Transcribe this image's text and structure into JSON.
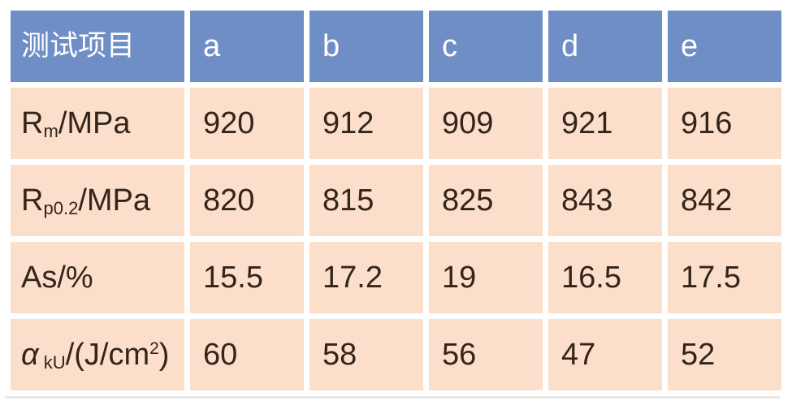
{
  "colors": {
    "header_bg": "#6f8ec6",
    "row_bg": "#fbdfca",
    "header_text": "#ffffff",
    "row_text": "#33251c",
    "page_bg": "#ffffff"
  },
  "chart_data": {
    "type": "table",
    "title": "",
    "columns": [
      "测试项目",
      "a",
      "b",
      "c",
      "d",
      "e"
    ],
    "rows": [
      {
        "label": "Rm/MPa",
        "label_segments": [
          {
            "t": "R"
          },
          {
            "t": "m",
            "s": "sub"
          },
          {
            "t": "/MPa"
          }
        ],
        "values": [
          920,
          912,
          909,
          921,
          916
        ]
      },
      {
        "label": "Rp0.2/MPa",
        "label_segments": [
          {
            "t": "R"
          },
          {
            "t": "p0.2",
            "s": "sub"
          },
          {
            "t": "/MPa"
          }
        ],
        "values": [
          820,
          815,
          825,
          843,
          842
        ]
      },
      {
        "label": "As/%",
        "label_segments": [
          {
            "t": "As/%"
          }
        ],
        "values": [
          15.5,
          17.2,
          19,
          16.5,
          17.5
        ]
      },
      {
        "label": "αkU/(J/cm²)",
        "label_segments": [
          {
            "t": "α",
            "s": "italic"
          },
          {
            "t": " kU",
            "s": "sub"
          },
          {
            "t": "/(J/cm"
          },
          {
            "t": "2",
            "s": "sup"
          },
          {
            "t": ")"
          }
        ],
        "values": [
          60,
          58,
          56,
          47,
          52
        ]
      }
    ]
  }
}
